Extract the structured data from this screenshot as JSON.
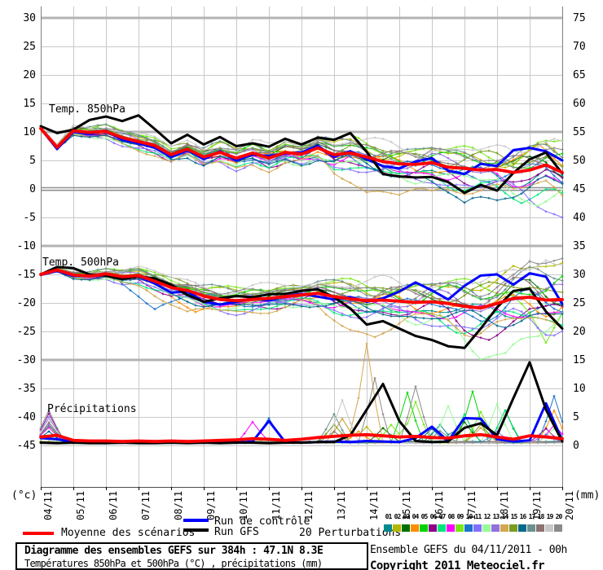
{
  "legend": {
    "mean": "Moyenne des scénarios",
    "control": "Run de contrôle",
    "gfs": "Run GFS",
    "perturbations": "20 Perturbations"
  },
  "footer": {
    "title": "Diagramme des ensembles GEFS sur 384h : 47.1N 8.3E",
    "subtitle": "Températures 850hPa et 500hPa (°C) , précipitations (mm)",
    "run_info": "Ensemble GEFS du 04/11/2011 - 00h",
    "copyright": "Copyright 2011 Meteociel.fr"
  },
  "chart_data": {
    "type": "line",
    "x_step_days": 0.5,
    "days_total": 16,
    "x_dates": [
      "04/11",
      "05/11",
      "06/11",
      "07/11",
      "08/11",
      "09/11",
      "10/11",
      "11/11",
      "12/11",
      "13/11",
      "14/11",
      "15/11",
      "16/11",
      "17/11",
      "18/11",
      "19/11",
      "20/11"
    ],
    "y_left_unit": "(°c)",
    "y_right_unit": "(mm)",
    "y_left_ticks": [
      30,
      25,
      20,
      15,
      10,
      5,
      0,
      -5,
      -10,
      -15,
      -20,
      -25,
      -30,
      -35,
      -40,
      -45
    ],
    "y_right_ticks": [
      75,
      70,
      65,
      60,
      55,
      50,
      45,
      40,
      35,
      30,
      25,
      20,
      15,
      10,
      5,
      0
    ],
    "emphasized_gridlines": [
      30,
      10,
      -10,
      -30
    ],
    "zero_line": 0,
    "series_colors": {
      "mean": "#ff0000",
      "control": "#0000ff",
      "gfs": "#000000"
    },
    "panels": [
      {
        "key": "t850",
        "name": "Temp. 850hPa",
        "unit": "°C",
        "mean": [
          10.6,
          7.3,
          10.2,
          9.9,
          10.1,
          9.0,
          8.3,
          7.6,
          6.0,
          7.0,
          5.6,
          6.4,
          5.4,
          6.3,
          5.4,
          6.4,
          6.1,
          7.2,
          6.0,
          6.3,
          5.6,
          4.8,
          4.4,
          4.3,
          4.6,
          3.8,
          3.6,
          3.3,
          3.4,
          2.9,
          3.3,
          4.2,
          2.9
        ],
        "control": [
          10.6,
          7.0,
          10.0,
          9.6,
          10.2,
          8.6,
          8.0,
          7.2,
          5.6,
          6.8,
          5.2,
          6.6,
          5.0,
          6.0,
          5.8,
          6.2,
          6.4,
          7.6,
          5.6,
          6.6,
          5.2,
          4.0,
          3.6,
          4.8,
          5.4,
          3.2,
          2.6,
          4.4,
          4.0,
          6.8,
          7.2,
          6.6,
          5.0
        ],
        "gfs": [
          11.0,
          9.8,
          10.4,
          12.1,
          12.7,
          11.9,
          12.9,
          10.5,
          8.0,
          9.5,
          7.8,
          9.1,
          7.5,
          8.0,
          7.4,
          8.8,
          7.8,
          9.0,
          8.6,
          9.8,
          6.5,
          2.6,
          2.2,
          2.0,
          2.1,
          1.2,
          -0.7,
          0.7,
          -0.3,
          2.8,
          5.2,
          6.4,
          2.7
        ],
        "spread_env": [
          0.15,
          0.8,
          1.2,
          1.3,
          1.5,
          1.6,
          1.8,
          2.0,
          2.2,
          2.4,
          2.8,
          3.0,
          3.2,
          3.4,
          3.6,
          3.8,
          4.0
        ]
      },
      {
        "key": "t500",
        "name": "Temp. 500hPa",
        "unit": "°C",
        "mean": [
          -15.0,
          -14.2,
          -15.1,
          -15.3,
          -14.9,
          -15.4,
          -15.2,
          -16.2,
          -17.3,
          -17.8,
          -18.8,
          -19.4,
          -19.6,
          -19.4,
          -19.2,
          -18.9,
          -18.6,
          -18.3,
          -18.9,
          -19.3,
          -19.6,
          -19.5,
          -19.7,
          -19.9,
          -19.8,
          -20.1,
          -20.6,
          -20.9,
          -20.1,
          -19.2,
          -19.0,
          -19.5,
          -19.4
        ],
        "control": [
          -15.1,
          -14.4,
          -15.3,
          -15.2,
          -15.0,
          -15.7,
          -15.4,
          -16.6,
          -18.2,
          -18.0,
          -19.8,
          -20.3,
          -19.8,
          -19.2,
          -19.6,
          -18.8,
          -18.4,
          -18.9,
          -19.4,
          -19.0,
          -19.8,
          -19.2,
          -18.0,
          -16.4,
          -17.8,
          -19.4,
          -17.0,
          -15.2,
          -15.0,
          -16.8,
          -14.8,
          -15.4,
          -20.2
        ],
        "gfs": [
          -15.0,
          -13.7,
          -13.9,
          -15.0,
          -15.2,
          -15.8,
          -15.4,
          -15.7,
          -16.8,
          -18.6,
          -19.8,
          -19.2,
          -18.8,
          -19.0,
          -18.5,
          -18.4,
          -17.9,
          -17.6,
          -19.0,
          -21.0,
          -23.8,
          -23.2,
          -24.5,
          -25.8,
          -26.5,
          -27.6,
          -27.9,
          -24.5,
          -20.8,
          -17.9,
          -17.5,
          -21.5,
          -24.5
        ],
        "spread_env": [
          0.15,
          0.7,
          0.9,
          1.4,
          1.8,
          2.0,
          2.0,
          2.1,
          2.2,
          2.6,
          3.0,
          3.4,
          3.8,
          4.2,
          4.5,
          4.8,
          5.0
        ]
      },
      {
        "key": "precip",
        "name": "Précipitations",
        "unit": "mm",
        "mean": [
          1.2,
          1.5,
          0.6,
          0.5,
          0.5,
          0.4,
          0.5,
          0.4,
          0.5,
          0.4,
          0.5,
          0.6,
          0.7,
          0.9,
          0.8,
          0.6,
          0.8,
          1.1,
          1.3,
          1.5,
          1.6,
          1.4,
          1.2,
          1.3,
          1.1,
          1.0,
          1.4,
          1.6,
          1.2,
          0.8,
          1.4,
          1.2,
          0.9
        ],
        "control": [
          1.0,
          0.8,
          0.3,
          0.2,
          0.2,
          0.2,
          0.3,
          0.2,
          0.2,
          0.2,
          0.2,
          0.3,
          0.2,
          0.4,
          4.0,
          0.3,
          0.2,
          0.3,
          0.4,
          0.3,
          0.5,
          0.4,
          0.3,
          1.0,
          3.0,
          0.5,
          4.5,
          4.4,
          0.8,
          0.4,
          0.6,
          7.1,
          0.6
        ],
        "gfs": [
          0.2,
          0.1,
          0.2,
          0.1,
          0.1,
          0.2,
          0.1,
          0.1,
          0.2,
          0.1,
          0.2,
          0.1,
          0.2,
          0.2,
          0.1,
          0.2,
          0.2,
          0.3,
          0.3,
          1.5,
          6.0,
          10.5,
          4.0,
          0.5,
          0.3,
          0.4,
          2.8,
          3.6,
          1.5,
          8.0,
          14.3,
          6.0,
          0.4
        ]
      }
    ],
    "members": [
      {
        "id": "01",
        "color": "#008b8b",
        "bias": -0.3,
        "precip_spikes": [
          [
            12.25,
            3.0
          ],
          [
            13.0,
            5.0
          ]
        ]
      },
      {
        "id": "02",
        "color": "#b5b800",
        "bias": 0.6,
        "precip_spikes": [
          [
            9.25,
            4.0
          ],
          [
            10.0,
            2.8
          ]
        ],
        "anom_500": [
          [
            14.5,
            -13.5
          ],
          [
            16,
            -13.0
          ]
        ]
      },
      {
        "id": "03",
        "color": "#007000",
        "bias": 0.2,
        "precip_spikes": [
          [
            10.5,
            2.5
          ],
          [
            13.0,
            3.5
          ],
          [
            14.25,
            5.7
          ]
        ]
      },
      {
        "id": "04",
        "color": "#ff8c00",
        "bias": -0.1,
        "precip_spikes": [
          [
            9.75,
            2.0
          ],
          [
            15.75,
            5.5
          ]
        ],
        "anom_850": [
          [
            15.25,
            8.0
          ]
        ],
        "anom_500": [
          [
            4.75,
            -21.6
          ]
        ]
      },
      {
        "id": "05",
        "color": "#00d400",
        "bias": 0.4,
        "precip_spikes": [
          [
            0.25,
            3.0
          ],
          [
            11.25,
            8.8
          ],
          [
            13.25,
            8.9
          ]
        ]
      },
      {
        "id": "06",
        "color": "#8b008b",
        "bias": -0.5,
        "precip_spikes": [
          [
            0.25,
            5.0
          ],
          [
            15.5,
            2.5
          ]
        ],
        "anom_500": [
          [
            13.75,
            -26.5
          ]
        ]
      },
      {
        "id": "07",
        "color": "#00e87a",
        "bias": -0.7,
        "precip_spikes": [
          [
            13.0,
            5.0
          ],
          [
            14.25,
            5.5
          ]
        ],
        "anom_850": [
          [
            14.75,
            -2.5
          ]
        ]
      },
      {
        "id": "08",
        "color": "#ff00ff",
        "bias": -0.4,
        "precip_spikes": [
          [
            0.25,
            2.5
          ],
          [
            6.5,
            3.5
          ],
          [
            15.75,
            3.0
          ]
        ]
      },
      {
        "id": "09",
        "color": "#76e817",
        "bias": 0.8,
        "precip_spikes": [
          [
            10.75,
            3.0
          ],
          [
            11.5,
            7.0
          ],
          [
            13.5,
            5.2
          ]
        ],
        "anom_850": [
          [
            16,
            8.5
          ]
        ],
        "anom_500": [
          [
            15.5,
            -27.0
          ]
        ]
      },
      {
        "id": "10",
        "color": "#1874cd",
        "bias": -0.2,
        "precip_spikes": [
          [
            7.0,
            4.3
          ],
          [
            15.75,
            8.0
          ]
        ],
        "anom_500": [
          [
            3.5,
            -21.1
          ]
        ]
      },
      {
        "id": "11",
        "color": "#8470ff",
        "bias": -0.8,
        "precip_spikes": [
          [
            0.25,
            4.5
          ],
          [
            14.0,
            2.0
          ]
        ],
        "anom_850": [
          [
            15.5,
            -2.5
          ],
          [
            16,
            -5.0
          ]
        ]
      },
      {
        "id": "12",
        "color": "#98fb98",
        "bias": -0.6,
        "precip_spikes": [
          [
            12.5,
            6.2
          ],
          [
            14.0,
            6.8
          ],
          [
            15.75,
            2.5
          ]
        ],
        "anom_850": [
          [
            15.25,
            -3.0
          ]
        ],
        "anom_500": [
          [
            13.5,
            -29.5
          ],
          [
            14.25,
            -30.5
          ],
          [
            15,
            -26.0
          ]
        ]
      },
      {
        "id": "13",
        "color": "#9370db",
        "bias": 0.1,
        "precip_spikes": [
          [
            0.25,
            3.0
          ],
          [
            15.5,
            1.5
          ]
        ]
      },
      {
        "id": "14",
        "color": "#d2a750",
        "bias": -0.9,
        "precip_spikes": [
          [
            9.25,
            4.0
          ],
          [
            10.0,
            17.3
          ],
          [
            13.5,
            2.5
          ]
        ],
        "anom_850": [
          [
            10,
            -0.5
          ],
          [
            11,
            -1.2
          ],
          [
            12,
            -0.3
          ]
        ],
        "anom_500": [
          [
            4.5,
            -21.5
          ],
          [
            9.5,
            -24.0
          ],
          [
            10.25,
            -26.0
          ],
          [
            12,
            -22.0
          ]
        ]
      },
      {
        "id": "15",
        "color": "#7a9c20",
        "bias": 0.5,
        "precip_spikes": [
          [
            9.0,
            3.0
          ],
          [
            13.5,
            3.0
          ]
        ]
      },
      {
        "id": "16",
        "color": "#00688b",
        "bias": -0.6,
        "precip_spikes": [
          [
            0.25,
            2.0
          ],
          [
            12.0,
            2.5
          ]
        ],
        "anom_850": [
          [
            13,
            -2.5
          ],
          [
            14,
            -2.0
          ]
        ]
      },
      {
        "id": "17",
        "color": "#6c8f8f",
        "bias": 0.7,
        "precip_spikes": [
          [
            9.0,
            5.0
          ],
          [
            12.25,
            2.0
          ]
        ]
      },
      {
        "id": "18",
        "color": "#8c7370",
        "bias": 0.3,
        "precip_spikes": [
          [
            0.25,
            3.5
          ],
          [
            9.0,
            2.0
          ]
        ]
      },
      {
        "id": "19",
        "color": "#c8c8c8",
        "bias": 0.9,
        "precip_spikes": [
          [
            0.25,
            4.0
          ],
          [
            9.25,
            7.4
          ]
        ],
        "anom_850": [
          [
            15.75,
            8.8
          ]
        ],
        "anom_500": [
          [
            15.5,
            -12.5
          ]
        ]
      },
      {
        "id": "20",
        "color": "#8a8a8a",
        "bias": 0.5,
        "precip_spikes": [
          [
            0.25,
            5.5
          ],
          [
            10.25,
            11.3
          ],
          [
            11.5,
            9.7
          ]
        ],
        "anom_500": [
          [
            15,
            -12.8
          ],
          [
            16,
            -12.2
          ]
        ]
      }
    ]
  }
}
